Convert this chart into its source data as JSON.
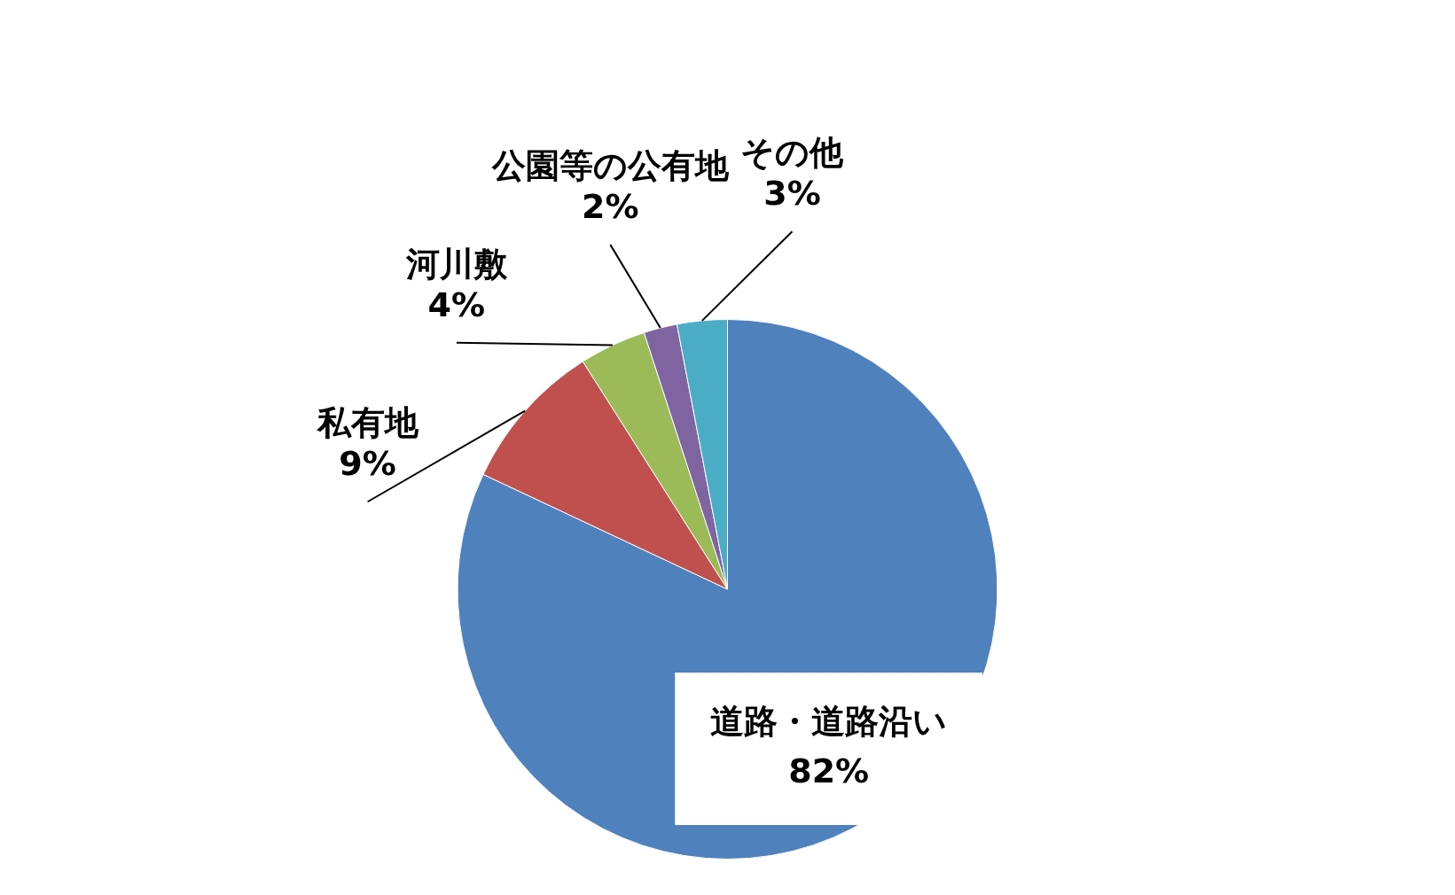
{
  "chart_data": {
    "type": "pie",
    "categories": [
      "道路・道路沿い",
      "私有地",
      "河川敷",
      "公園等の公有地",
      "その他"
    ],
    "values": [
      82,
      9,
      4,
      2,
      3
    ],
    "colors": [
      "#4f81bd",
      "#c0504d",
      "#9bbb59",
      "#8064a2",
      "#4bacc6"
    ],
    "value_labels": [
      "82%",
      "9%",
      "4%",
      "2%",
      "3%"
    ]
  }
}
